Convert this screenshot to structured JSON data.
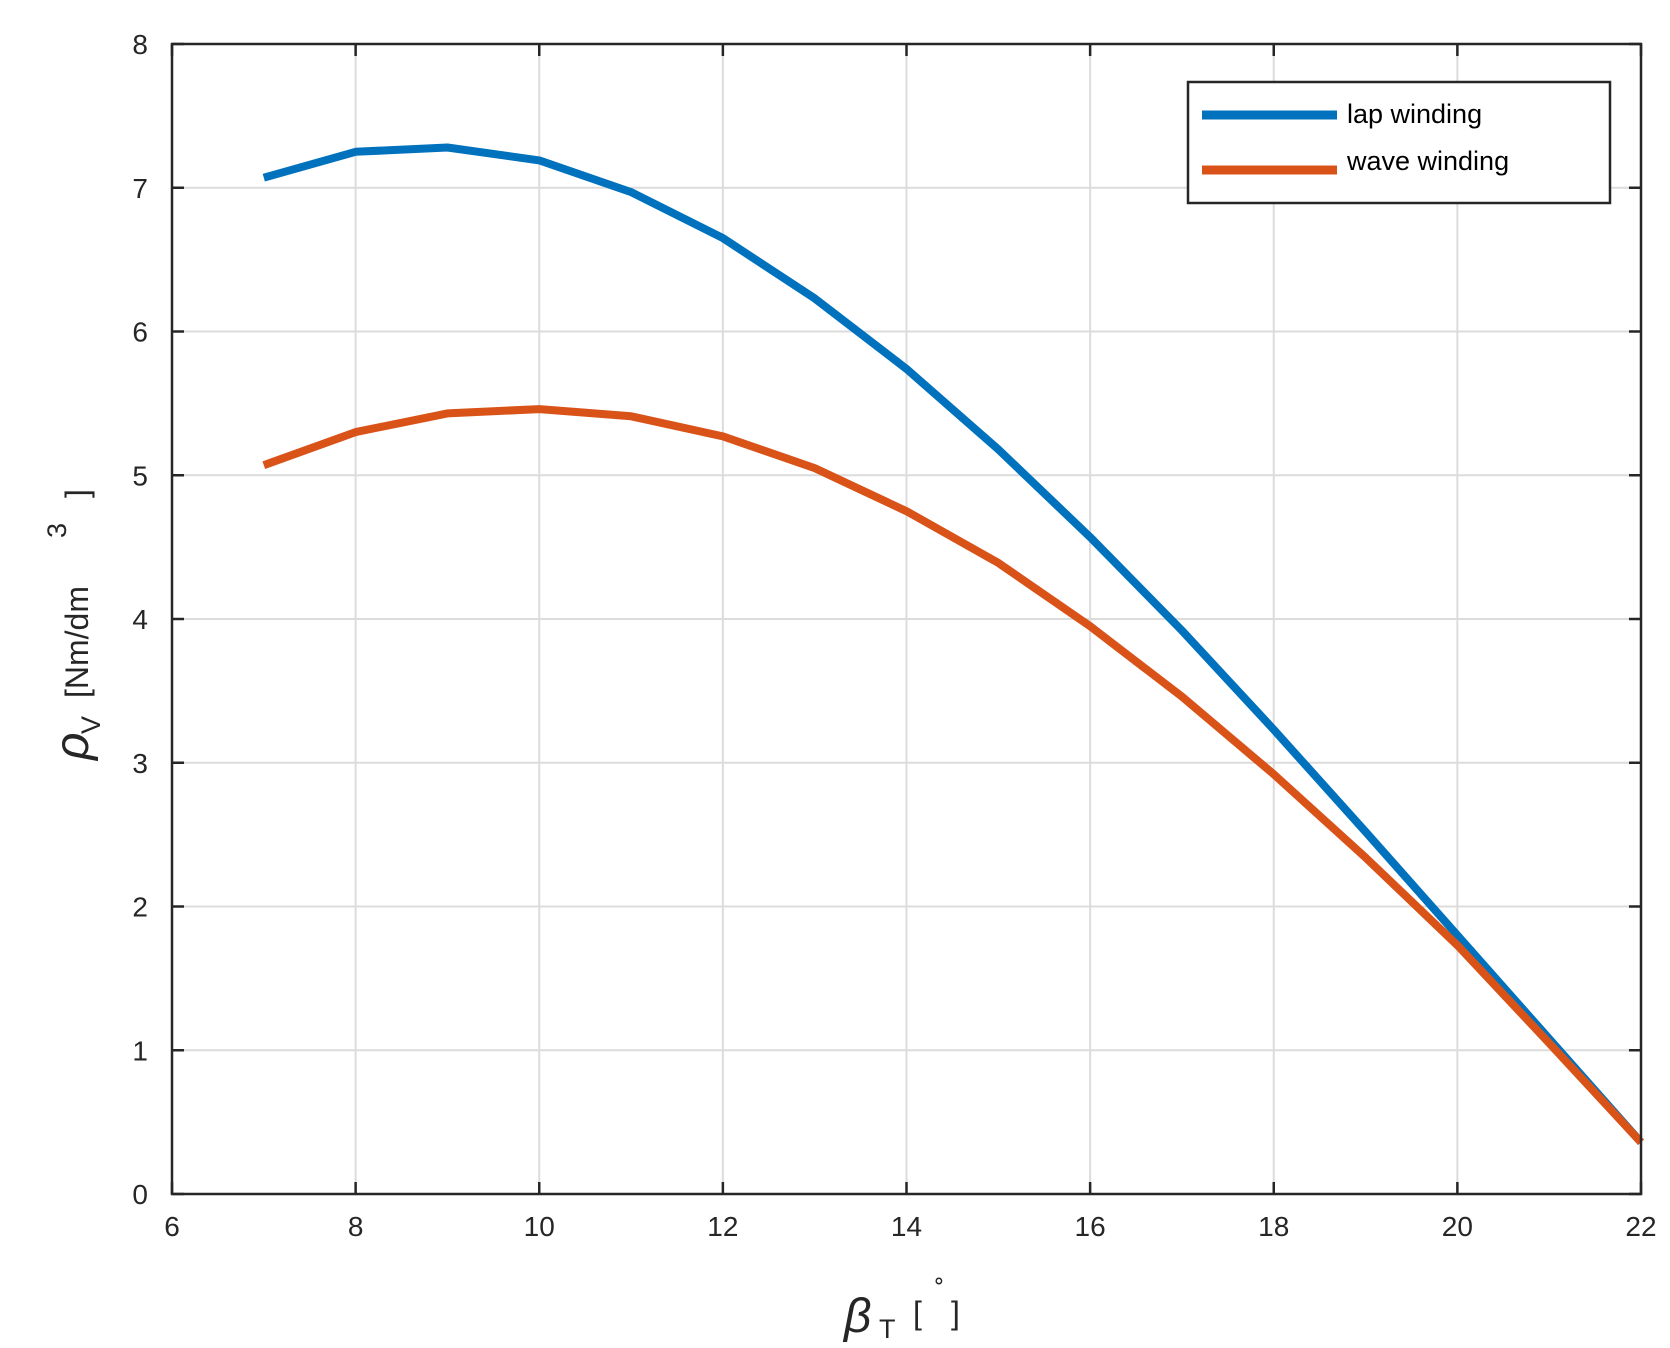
{
  "chart_data": {
    "type": "line",
    "title": "",
    "xlabel": {
      "symbol": "β",
      "sub": "T",
      "unit_open": "[",
      "unit": "∘",
      "unit_close": "]"
    },
    "ylabel": {
      "symbol": "ρ",
      "sub": "V",
      "unit_open": "[Nm/dm",
      "sup": "3",
      "unit_close": "]"
    },
    "xlim": [
      6,
      22
    ],
    "ylim": [
      0,
      8
    ],
    "xticks": [
      6,
      8,
      10,
      12,
      14,
      16,
      18,
      20,
      22
    ],
    "yticks": [
      0,
      1,
      2,
      3,
      4,
      5,
      6,
      7,
      8
    ],
    "grid": true,
    "legend_position": "top-right",
    "x": [
      7,
      8,
      9,
      10,
      11,
      12,
      13,
      14,
      15,
      16,
      17,
      18,
      19,
      20,
      21,
      22
    ],
    "series": [
      {
        "name": "lap winding",
        "color": "#0072BD",
        "values": [
          7.07,
          7.25,
          7.28,
          7.19,
          6.97,
          6.65,
          6.23,
          5.74,
          5.18,
          4.57,
          3.92,
          3.23,
          2.52,
          1.8,
          1.08,
          0.36
        ]
      },
      {
        "name": "wave winding",
        "color": "#D95319",
        "values": [
          5.07,
          5.3,
          5.43,
          5.46,
          5.41,
          5.27,
          5.05,
          4.75,
          4.39,
          3.95,
          3.46,
          2.92,
          2.34,
          1.73,
          1.05,
          0.36
        ]
      }
    ]
  }
}
